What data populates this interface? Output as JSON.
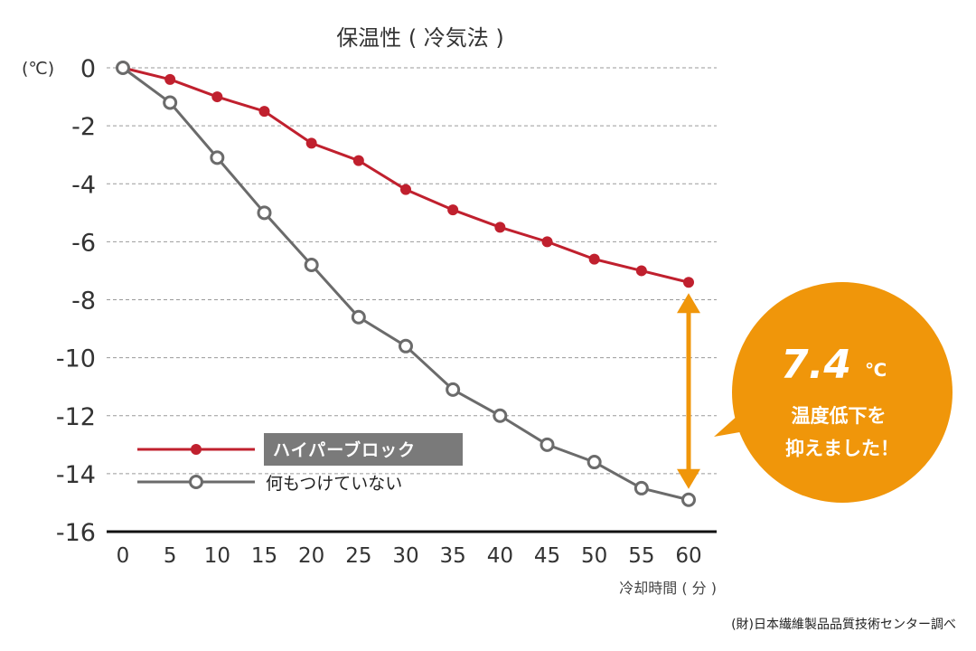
{
  "chart_data": {
    "type": "line",
    "title": "保温性 ( 冷気法 )",
    "y_unit": "(℃)",
    "xlabel": "冷却時間 ( 分 )",
    "ylabel": "",
    "x": [
      0,
      5,
      10,
      15,
      20,
      25,
      30,
      35,
      40,
      45,
      50,
      55,
      60
    ],
    "xlim": [
      0,
      60
    ],
    "ylim": [
      -16,
      0
    ],
    "yticks": [
      0,
      -2,
      -4,
      -6,
      -8,
      -10,
      -12,
      -14,
      -16
    ],
    "ytick_labels": [
      "0",
      "-2",
      "-4",
      "-6",
      "-8",
      "-10",
      "-12",
      "-14",
      "-16"
    ],
    "xtick_labels": [
      "0",
      "5",
      "10",
      "15",
      "20",
      "25",
      "30",
      "35",
      "40",
      "45",
      "50",
      "55",
      "60"
    ],
    "grid": "horizontal dashed",
    "legend_position": "bottom-left",
    "series": [
      {
        "name": "ハイパーブロック",
        "color": "#c0202e",
        "marker": "filled-circle",
        "values": [
          0,
          -0.4,
          -1.0,
          -1.5,
          -2.6,
          -3.2,
          -4.2,
          -4.9,
          -5.5,
          -6.0,
          -6.6,
          -7.0,
          -7.4
        ]
      },
      {
        "name": "何もつけていない",
        "color": "#6b6b6b",
        "marker": "open-circle",
        "values": [
          0,
          -1.2,
          -3.1,
          -5.0,
          -6.8,
          -8.6,
          -9.6,
          -11.1,
          -12.0,
          -13.0,
          -13.6,
          -14.5,
          -14.9
        ]
      }
    ],
    "annotation": {
      "value": "7.4",
      "unit": "℃",
      "line1": "温度低下を",
      "line2": "抑えました！",
      "color": "#f0960a"
    },
    "source": "(財)日本繊維製品品質技術センター調べ"
  }
}
